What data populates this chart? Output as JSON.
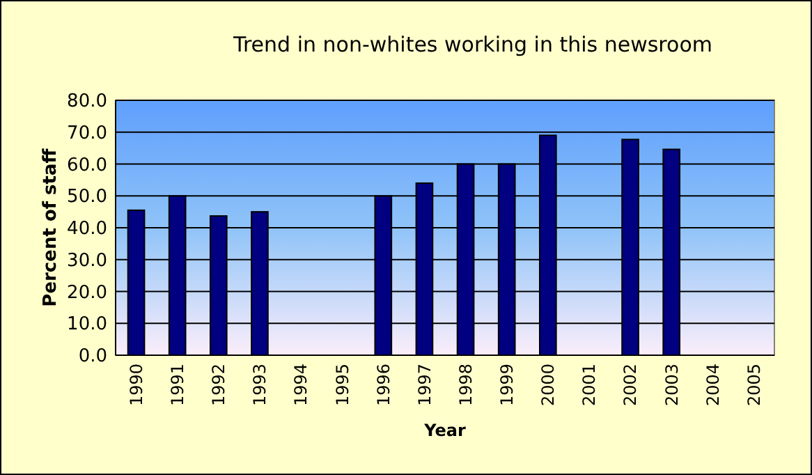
{
  "chart_data": {
    "type": "bar",
    "title": "Trend in non-whites working in this newsroom",
    "xlabel": "Year",
    "ylabel": "Percent of staff",
    "categories": [
      "1990",
      "1991",
      "1992",
      "1993",
      "1994",
      "1995",
      "1996",
      "1997",
      "1998",
      "1999",
      "2000",
      "2001",
      "2002",
      "2003",
      "2004",
      "2005"
    ],
    "values": [
      45.5,
      50,
      43.7,
      45,
      null,
      null,
      50,
      54,
      60,
      60,
      69,
      null,
      67.7,
      64.6,
      null,
      null
    ],
    "color": "#000080",
    "ylim": [
      0,
      80
    ],
    "yticks": [
      {
        "value": 0,
        "label": "0.0"
      },
      {
        "value": 10,
        "label": "10.0"
      },
      {
        "value": 20,
        "label": "20.0"
      },
      {
        "value": 30,
        "label": "30.0"
      },
      {
        "value": 40,
        "label": "40.0"
      },
      {
        "value": 50,
        "label": "50.0"
      },
      {
        "value": 60,
        "label": "60.0"
      },
      {
        "value": 70,
        "label": "70.0"
      },
      {
        "value": 80,
        "label": "80.0"
      }
    ],
    "grid": "y"
  }
}
